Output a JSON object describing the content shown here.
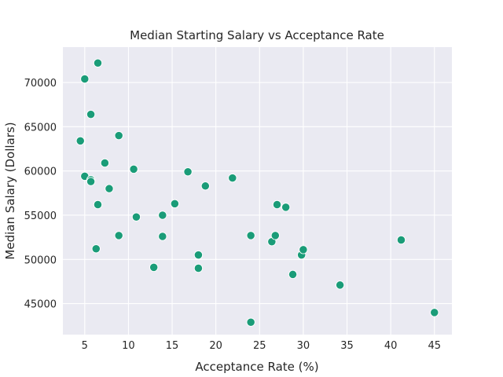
{
  "chart_data": {
    "type": "scatter",
    "title": "Median Starting Salary vs Acceptance Rate",
    "xlabel": "Acceptance Rate (%)",
    "ylabel": "Median Salary (Dollars)",
    "xlim": [
      2.5,
      47.0
    ],
    "ylim": [
      41500,
      74000
    ],
    "xticks": [
      5,
      10,
      15,
      20,
      25,
      30,
      35,
      40,
      45
    ],
    "yticks": [
      45000,
      50000,
      55000,
      60000,
      65000,
      70000
    ],
    "grid": true,
    "legend": "none",
    "colors": {
      "background": "#eaeaf2",
      "grid": "#ffffff",
      "marker": "#1a9c78",
      "marker_edge": "#ffffff"
    },
    "points": [
      {
        "x": 4.5,
        "y": 63400
      },
      {
        "x": 5.0,
        "y": 70400
      },
      {
        "x": 5.0,
        "y": 59400
      },
      {
        "x": 5.7,
        "y": 59000
      },
      {
        "x": 5.7,
        "y": 58800
      },
      {
        "x": 5.7,
        "y": 66400
      },
      {
        "x": 6.3,
        "y": 51200
      },
      {
        "x": 6.5,
        "y": 56200
      },
      {
        "x": 6.5,
        "y": 72200
      },
      {
        "x": 7.3,
        "y": 60900
      },
      {
        "x": 7.8,
        "y": 58000
      },
      {
        "x": 8.9,
        "y": 64000
      },
      {
        "x": 8.9,
        "y": 52700
      },
      {
        "x": 10.6,
        "y": 60200
      },
      {
        "x": 10.9,
        "y": 54800
      },
      {
        "x": 12.9,
        "y": 49100
      },
      {
        "x": 13.9,
        "y": 55000
      },
      {
        "x": 13.9,
        "y": 52600
      },
      {
        "x": 15.3,
        "y": 56300
      },
      {
        "x": 16.8,
        "y": 59900
      },
      {
        "x": 18.0,
        "y": 50500
      },
      {
        "x": 18.0,
        "y": 49000
      },
      {
        "x": 18.8,
        "y": 58300
      },
      {
        "x": 21.9,
        "y": 59200
      },
      {
        "x": 24.0,
        "y": 52700
      },
      {
        "x": 24.0,
        "y": 42900
      },
      {
        "x": 26.4,
        "y": 52000
      },
      {
        "x": 26.8,
        "y": 52700
      },
      {
        "x": 27.0,
        "y": 56200
      },
      {
        "x": 28.0,
        "y": 55900
      },
      {
        "x": 28.8,
        "y": 48300
      },
      {
        "x": 29.8,
        "y": 50500
      },
      {
        "x": 30.0,
        "y": 51100
      },
      {
        "x": 34.2,
        "y": 47100
      },
      {
        "x": 41.2,
        "y": 52200
      },
      {
        "x": 45.0,
        "y": 44000
      }
    ]
  }
}
